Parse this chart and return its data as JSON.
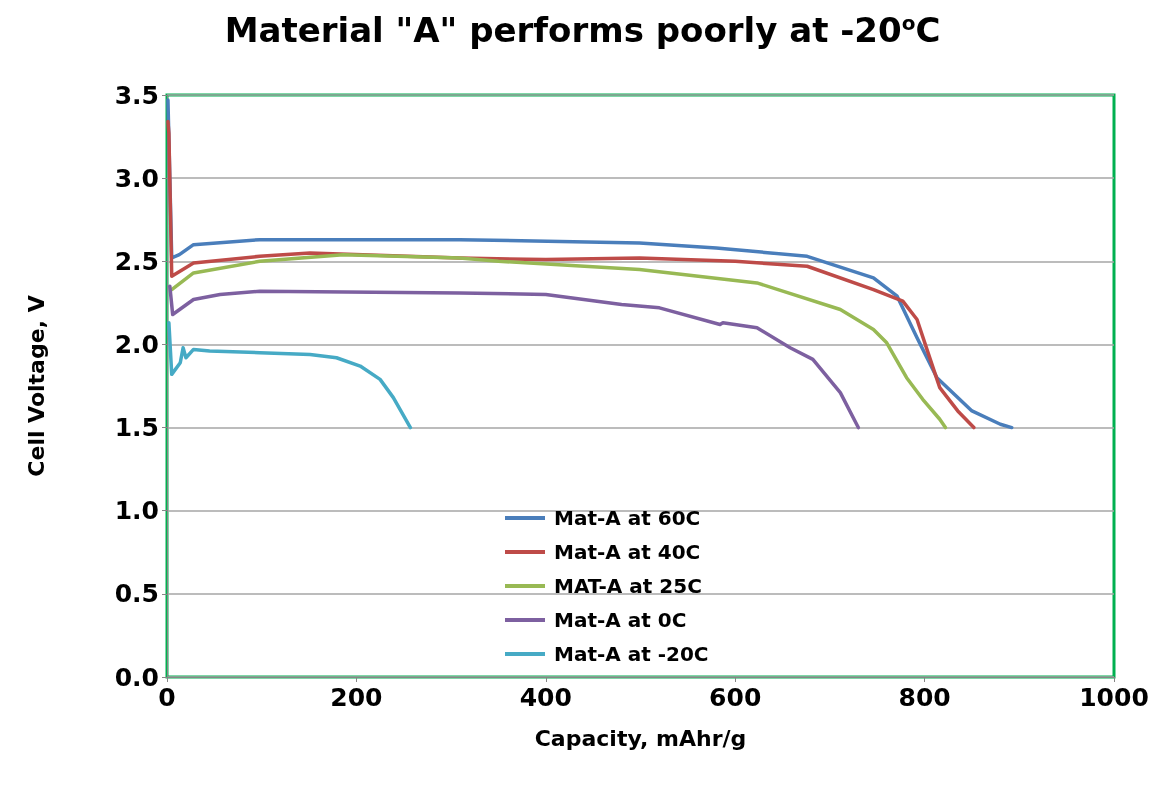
{
  "chart_data": {
    "type": "line",
    "title": "Material \"A\" performs poorly at -20$^{o}$C",
    "xlabel": "Capacity, mAhr/g",
    "ylabel": "Cell Voltage, V",
    "xlim": [
      0,
      1000
    ],
    "xticks": [
      0,
      200,
      400,
      600,
      800,
      1000
    ],
    "ylim": [
      0,
      3.5
    ],
    "yticks": [
      {
        "value": 0,
        "label": "0.0"
      },
      0.5,
      {
        "value": 1,
        "label": "1.0"
      },
      1.5,
      {
        "value": 2,
        "label": "2.0"
      },
      2.5,
      {
        "value": 3,
        "label": "3.0"
      },
      3.5
    ],
    "grid": "y",
    "legend": "bottom",
    "marker": "none",
    "line_style": "solid",
    "series": [
      {
        "name": "Mat-A at 60C",
        "color": "#4a7ebb",
        "x": [
          1,
          5,
          13,
          28,
          98,
          204,
          309,
          499,
          580,
          676,
          746,
          771,
          792,
          813,
          850,
          880,
          892
        ],
        "values": [
          3.47,
          2.52,
          2.54,
          2.6,
          2.63,
          2.63,
          2.63,
          2.61,
          2.58,
          2.53,
          2.4,
          2.29,
          2.04,
          1.8,
          1.6,
          1.52,
          1.5
        ]
      },
      {
        "name": "Mat-A at 40C",
        "color": "#be4b48",
        "x": [
          1,
          2,
          5,
          28,
          98,
          151,
          309,
          400,
          499,
          600,
          676,
          746,
          777,
          792,
          806,
          816,
          835,
          852
        ],
        "values": [
          3.34,
          3.27,
          2.41,
          2.49,
          2.53,
          2.55,
          2.52,
          2.51,
          2.52,
          2.5,
          2.47,
          2.33,
          2.26,
          2.15,
          1.91,
          1.74,
          1.6,
          1.5
        ]
      },
      {
        "name": "MAT-A at 25C",
        "color": "#98b954",
        "x": [
          5,
          28,
          98,
          186,
          309,
          350,
          499,
          623,
          711,
          746,
          760,
          781,
          798,
          816,
          822
        ],
        "values": [
          2.33,
          2.43,
          2.5,
          2.54,
          2.52,
          2.5,
          2.45,
          2.37,
          2.21,
          2.09,
          2.01,
          1.8,
          1.67,
          1.55,
          1.5
        ]
      },
      {
        "name": "Mat-A at 0C",
        "color": "#7d60a0",
        "x": [
          3,
          6,
          28,
          56,
          98,
          309,
          400,
          480,
          520,
          584,
          587,
          623,
          658,
          682,
          711,
          730
        ],
        "values": [
          2.35,
          2.18,
          2.27,
          2.3,
          2.32,
          2.31,
          2.3,
          2.24,
          2.22,
          2.12,
          2.13,
          2.1,
          1.98,
          1.91,
          1.71,
          1.5
        ]
      },
      {
        "name": "Mat-A at -20C",
        "color": "#46aac5",
        "x": [
          2,
          5,
          14,
          17,
          20,
          28,
          45,
          98,
          151,
          179,
          204,
          225,
          239,
          257
        ],
        "values": [
          2.13,
          1.82,
          1.89,
          1.98,
          1.92,
          1.97,
          1.96,
          1.95,
          1.94,
          1.92,
          1.87,
          1.79,
          1.68,
          1.5
        ]
      }
    ]
  }
}
